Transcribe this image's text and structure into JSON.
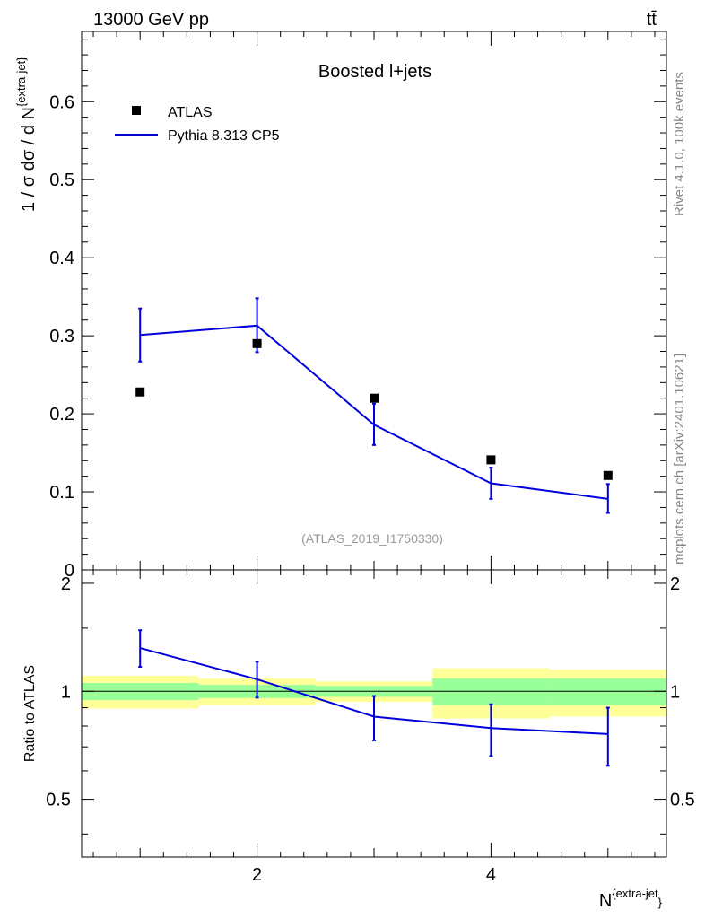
{
  "header": {
    "beam_label": "13000 GeV pp",
    "process_label": "tt̄"
  },
  "side_text": {
    "rivet": "Rivet 4.1.0,  100k events",
    "mcplots": "mcplots.cern.ch [arXiv:2401.10621]"
  },
  "chart_data": [
    {
      "type": "scatter",
      "panel": "main",
      "title": "Boosted l+jets",
      "watermark": "(ATLAS_2019_I1750330)",
      "xlabel": "N",
      "xlabel_sup": "{extra-jet",
      "xlabel_tail": "}",
      "ylabel": "1 / σ dσ / d N",
      "ylabel_sup": "{extra-jet",
      "ylabel_tail": "}",
      "xlim": [
        0.5,
        5.5
      ],
      "ylim": [
        0,
        0.69
      ],
      "yticks": [
        {
          "value": 0,
          "label": "0"
        },
        {
          "value": 0.1,
          "label": "0.1"
        },
        {
          "value": 0.2,
          "label": "0.2"
        },
        {
          "value": 0.3,
          "label": "0.3"
        },
        {
          "value": 0.4,
          "label": "0.4"
        },
        {
          "value": 0.5,
          "label": "0.5"
        },
        {
          "value": 0.6,
          "label": "0.6"
        }
      ],
      "legend": [
        {
          "name": "ATLAS",
          "marker": "square",
          "color": "#000000"
        },
        {
          "name": "Pythia 8.313 CP5",
          "marker": "line",
          "color": "#0000dd"
        }
      ],
      "series": [
        {
          "name": "ATLAS",
          "x": [
            1,
            2,
            3,
            4,
            5
          ],
          "y": [
            0.228,
            0.29,
            0.22,
            0.141,
            0.121
          ]
        },
        {
          "name": "Pythia 8.313 CP5",
          "x": [
            1,
            2,
            3,
            4,
            5
          ],
          "y": [
            0.301,
            0.313,
            0.186,
            0.111,
            0.091
          ],
          "err_low": [
            0.267,
            0.279,
            0.16,
            0.091,
            0.073
          ],
          "err_high": [
            0.335,
            0.348,
            0.213,
            0.131,
            0.11
          ]
        }
      ]
    },
    {
      "type": "line",
      "panel": "ratio",
      "ylabel": "Ratio to ATLAS",
      "xlim": [
        0.5,
        5.5
      ],
      "ylim": [
        0.345,
        2.18
      ],
      "yticks": [
        {
          "value": 0.5,
          "label": "0.5"
        },
        {
          "value": 1,
          "label": "1"
        },
        {
          "value": 2,
          "label": "2"
        }
      ],
      "xticks": [
        {
          "value": 2,
          "label": "2"
        },
        {
          "value": 4,
          "label": "4"
        }
      ],
      "colors": {
        "band_inner": "#99ff99",
        "band_outer": "#ffff99",
        "line": "#0000dd"
      },
      "bands": [
        {
          "x_low": 0.5,
          "x_high": 1.5,
          "inner": [
            0.945,
            1.055
          ],
          "outer": [
            0.895,
            1.105
          ]
        },
        {
          "x_low": 1.5,
          "x_high": 2.5,
          "inner": [
            0.958,
            1.042
          ],
          "outer": [
            0.915,
            1.085
          ]
        },
        {
          "x_low": 2.5,
          "x_high": 3.5,
          "inner": [
            0.965,
            1.035
          ],
          "outer": [
            0.935,
            1.065
          ]
        },
        {
          "x_low": 3.5,
          "x_high": 4.5,
          "inner": [
            0.915,
            1.085
          ],
          "outer": [
            0.84,
            1.16
          ]
        },
        {
          "x_low": 4.5,
          "x_high": 5.5,
          "inner": [
            0.915,
            1.085
          ],
          "outer": [
            0.85,
            1.15
          ]
        }
      ],
      "series": [
        {
          "name": "Pythia 8.313 CP5",
          "x": [
            1,
            2,
            3,
            4,
            5
          ],
          "y": [
            1.32,
            1.08,
            0.85,
            0.79,
            0.76
          ],
          "err_low": [
            1.17,
            0.96,
            0.73,
            0.66,
            0.62
          ],
          "err_high": [
            1.48,
            1.21,
            0.97,
            0.92,
            0.9
          ]
        }
      ]
    }
  ]
}
